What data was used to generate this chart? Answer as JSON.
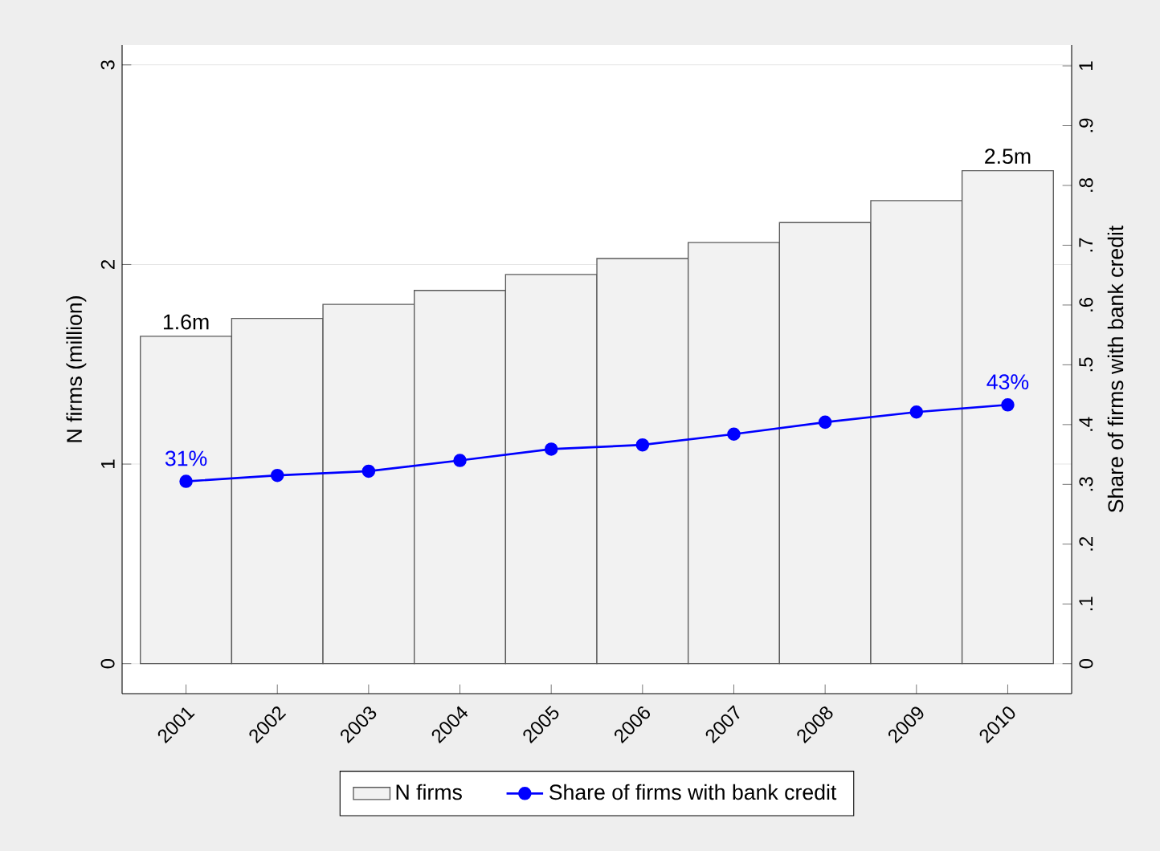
{
  "chart_data": {
    "type": "bar",
    "categories": [
      "2001",
      "2002",
      "2003",
      "2004",
      "2005",
      "2006",
      "2007",
      "2008",
      "2009",
      "2010"
    ],
    "ylabel": "N firms (million)",
    "y2label": "Share of firms with bank credit",
    "ylim": [
      -0.15,
      3.1
    ],
    "yticks": [
      0,
      1,
      2,
      3
    ],
    "y2lim": [
      -0.05,
      1.035
    ],
    "y2ticks": [
      0,
      {
        "value": 0.1,
        "label": ".1"
      },
      {
        "value": 0.2,
        "label": ".2"
      },
      {
        "value": 0.3,
        "label": ".3"
      },
      {
        "value": 0.4,
        "label": ".4"
      },
      {
        "value": 0.5,
        "label": ".5"
      },
      {
        "value": 0.6,
        "label": ".6"
      },
      {
        "value": 0.7,
        "label": ".7"
      },
      {
        "value": 0.8,
        "label": ".8"
      },
      {
        "value": 0.9,
        "label": ".9"
      },
      1
    ],
    "grid": "y",
    "legend": "bottom",
    "series": [
      {
        "name": "N firms",
        "color": "#f2f2f2",
        "values": [
          1.64,
          1.73,
          1.8,
          1.87,
          1.95,
          2.03,
          2.11,
          2.21,
          2.32,
          2.47
        ],
        "value_labels": [
          "1.6m",
          null,
          null,
          null,
          null,
          null,
          null,
          null,
          null,
          "2.5m"
        ]
      },
      {
        "name": "Share of firms with bank credit",
        "type": "line",
        "axis": "y2",
        "color": "#0000ff",
        "marker": "circle",
        "values": [
          0.305,
          0.315,
          0.322,
          0.34,
          0.359,
          0.366,
          0.384,
          0.404,
          0.421,
          0.433
        ],
        "value_labels": [
          "31%",
          null,
          null,
          null,
          null,
          null,
          null,
          null,
          null,
          "43%"
        ]
      }
    ]
  }
}
